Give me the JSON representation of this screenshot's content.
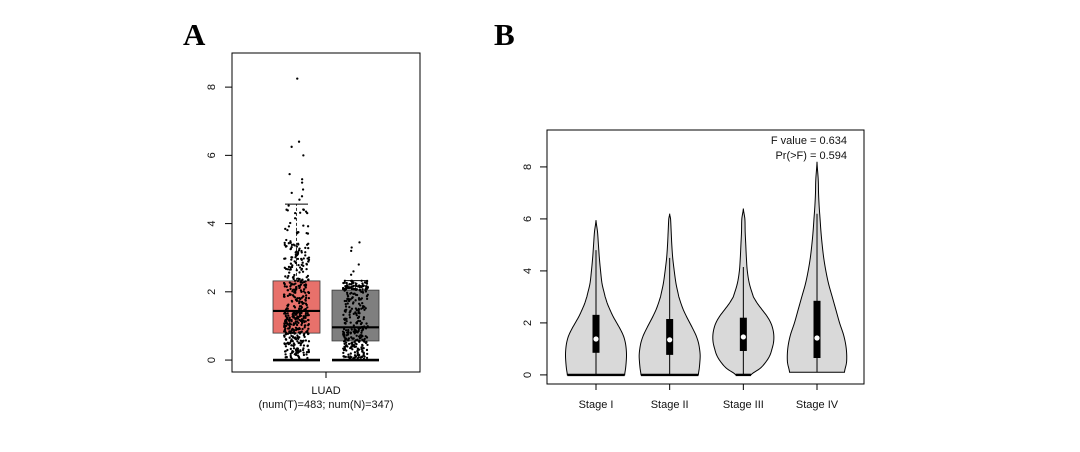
{
  "chart_data": [
    {
      "label": "A",
      "type": "box",
      "title": "",
      "xlabel": "LUAD",
      "xlabel_sub": "(num(T)=483; num(N)=347)",
      "ylabel": "",
      "ylim": [
        -0.35,
        9.0
      ],
      "yticks": [
        0,
        2,
        4,
        6,
        8
      ],
      "grid": false,
      "points": "jittered individual samples overlaid on each box",
      "groups": [
        {
          "n": 483,
          "color": "#E8716B",
          "min": 0,
          "q1": 0.79,
          "median": 1.44,
          "q3": 2.32,
          "whisker_high": 4.57,
          "outliers": [
            4.7,
            4.8,
            4.9,
            5.0,
            5.2,
            5.3,
            5.45,
            6.0,
            6.25,
            6.4,
            8.25
          ]
        },
        {
          "n": 347,
          "color": "#7F7F7F",
          "min": 0,
          "q1": 0.56,
          "median": 0.96,
          "q3": 2.05,
          "whisker_high": 2.33,
          "outliers": [
            2.5,
            2.6,
            2.8,
            3.2,
            3.3,
            3.45
          ]
        }
      ]
    },
    {
      "label": "B",
      "type": "violin",
      "title": "",
      "xlabel": "",
      "ylabel": "",
      "categories": [
        "Stage I",
        "Stage II",
        "Stage III",
        "Stage IV"
      ],
      "ylim": [
        -0.35,
        9.42
      ],
      "yticks": [
        0,
        2,
        4,
        6,
        8
      ],
      "grid": false,
      "annotations": [
        "F value = 0.634",
        "Pr(>F) = 0.594"
      ],
      "fill": "#D9D9D9",
      "violins": [
        {
          "min": 0,
          "max": 5.95,
          "q1": 0.85,
          "median": 1.38,
          "q3": 2.31,
          "whisker_high": 4.8,
          "density": {
            "values": [
              0,
              0.25,
              0.5,
              0.75,
              1.0,
              1.25,
              1.5,
              1.75,
              2.0,
              2.25,
              2.5,
              2.75,
              3.0,
              3.5,
              4.0,
              4.5,
              5.0,
              5.5,
              5.95
            ],
            "relative_density": [
              0.94,
              0.97,
              0.99,
              1.0,
              0.99,
              0.96,
              0.9,
              0.8,
              0.68,
              0.56,
              0.46,
              0.37,
              0.3,
              0.2,
              0.15,
              0.11,
              0.08,
              0.05,
              0
            ]
          }
        },
        {
          "min": 0,
          "max": 6.2,
          "q1": 0.77,
          "median": 1.35,
          "q3": 2.15,
          "whisker_high": 4.5,
          "density": {
            "values": [
              0,
              0.25,
              0.5,
              0.75,
              1.0,
              1.25,
              1.5,
              1.75,
              2.0,
              2.25,
              2.5,
              2.75,
              3.0,
              3.5,
              4.0,
              4.5,
              5.0,
              5.5,
              6.0,
              6.2
            ],
            "relative_density": [
              0.94,
              0.97,
              0.99,
              1.0,
              0.98,
              0.94,
              0.87,
              0.77,
              0.66,
              0.55,
              0.45,
              0.37,
              0.3,
              0.21,
              0.15,
              0.1,
              0.07,
              0.05,
              0.03,
              0
            ]
          }
        },
        {
          "min": 0,
          "max": 6.4,
          "q1": 0.92,
          "median": 1.46,
          "q3": 2.2,
          "whisker_high": 4.15,
          "density": {
            "values": [
              0,
              0.25,
              0.5,
              0.75,
              1.0,
              1.25,
              1.5,
              1.75,
              2.0,
              2.25,
              2.5,
              2.75,
              3.0,
              3.5,
              4.0,
              4.5,
              5.0,
              5.5,
              6.0,
              6.4
            ],
            "relative_density": [
              0.25,
              0.55,
              0.74,
              0.87,
              0.94,
              0.99,
              1.0,
              0.97,
              0.9,
              0.78,
              0.62,
              0.46,
              0.33,
              0.2,
              0.13,
              0.1,
              0.08,
              0.06,
              0.05,
              0
            ]
          }
        },
        {
          "min": 0.1,
          "max": 8.2,
          "q1": 0.65,
          "median": 1.42,
          "q3": 2.85,
          "whisker_high": 6.2,
          "density": {
            "values": [
              0.1,
              0.5,
              1.0,
              1.5,
              2.0,
              2.5,
              3.0,
              3.5,
              4.0,
              4.5,
              5.0,
              5.5,
              6.0,
              6.5,
              7.0,
              7.5,
              8.2
            ],
            "relative_density": [
              0.9,
              0.97,
              0.96,
              0.88,
              0.74,
              0.62,
              0.5,
              0.38,
              0.29,
              0.22,
              0.17,
              0.13,
              0.1,
              0.07,
              0.05,
              0.04,
              0
            ]
          }
        }
      ]
    }
  ]
}
